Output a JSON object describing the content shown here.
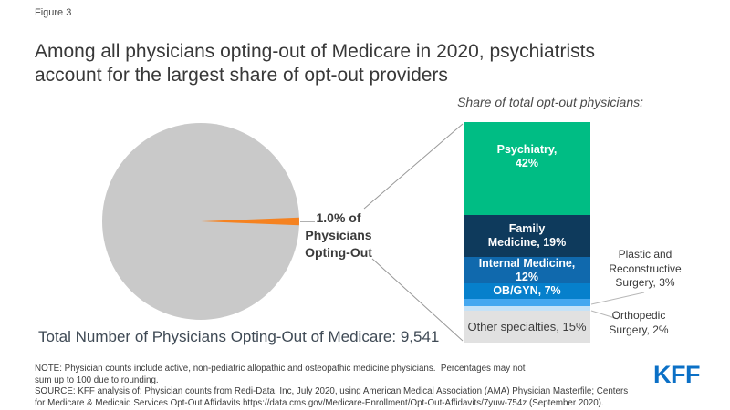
{
  "figure_label": "Figure 3",
  "title_lines": [
    "Among all physicians opting-out of Medicare in 2020, psychiatrists",
    "account for the largest share of opt-out providers"
  ],
  "subtitle": "Share of total opt-out physicians:",
  "pie_callout": {
    "lines": [
      "1.0% of",
      "Physicians",
      "Opting-Out"
    ]
  },
  "bar_labels": {
    "psychiatry": {
      "line1": "Psychiatry,",
      "line2": "42%"
    },
    "family": {
      "line1": "Family",
      "line2": "Medicine, 19%"
    },
    "internal": {
      "line1": "Internal Medicine,",
      "line2": "12%"
    },
    "obgyn": {
      "line1": "OB/GYN, 7%"
    },
    "other": {
      "line1": "Other specialties, 15%"
    }
  },
  "callouts": {
    "plastic": {
      "lines": [
        "Plastic and",
        "Reconstructive",
        "Surgery, 3%"
      ]
    },
    "orthopedic": {
      "lines": [
        "Orthopedic",
        "Surgery, 2%"
      ]
    }
  },
  "total_label": "Total Number of Physicians Opting-Out of Medicare: 9,541",
  "note_lines": [
    "NOTE: Physician counts include active, non-pediatric allopathic and osteopathic medicine physicians.  Percentages may not",
    "sum up to 100 due to rounding."
  ],
  "source_lines": [
    "SOURCE: KFF analysis of: Physician counts from Redi-Data, Inc, July 2020, using American Medical Association (AMA) Physician Masterfile; Centers",
    "for Medicare & Medicaid Services Opt-Out Affidavits https://data.cms.gov/Medicare-Enrollment/Opt-Out-Affidavits/7yuw-754z (September 2020)."
  ],
  "logo_text": "KFF",
  "colors": {
    "accent_orange": "#F58220",
    "pie_gray": "#C9C9C9",
    "kff_blue": "#0B70C6",
    "leader_line": "#999999"
  },
  "chart_data": [
    {
      "type": "pie",
      "slices": [
        {
          "label": "1.0% of Physicians Opting-Out",
          "value": 1.0,
          "color": "#F58220"
        },
        {
          "label": "",
          "value": 99.0,
          "color": "#C9C9C9"
        }
      ],
      "annotation": "Total Number of Physicians Opting-Out of Medicare: 9,541"
    },
    {
      "type": "bar",
      "stacked": true,
      "title": "Share of total opt-out physicians:",
      "ylim": [
        0,
        100
      ],
      "segments": [
        {
          "name": "Psychiatry",
          "value": 42,
          "color": "#00BD84"
        },
        {
          "name": "Family Medicine",
          "value": 19,
          "color": "#0E3A5C"
        },
        {
          "name": "Internal Medicine",
          "value": 12,
          "color": "#1069AD"
        },
        {
          "name": "OB/GYN",
          "value": 7,
          "color": "#0680CC"
        },
        {
          "name": "Plastic and Reconstructive Surgery",
          "value": 3,
          "color": "#45A8F0"
        },
        {
          "name": "Orthopedic Surgery",
          "value": 2,
          "color": "#C5E2F7"
        },
        {
          "name": "Other specialties",
          "value": 15,
          "color": "#E1E1E1"
        }
      ]
    }
  ]
}
